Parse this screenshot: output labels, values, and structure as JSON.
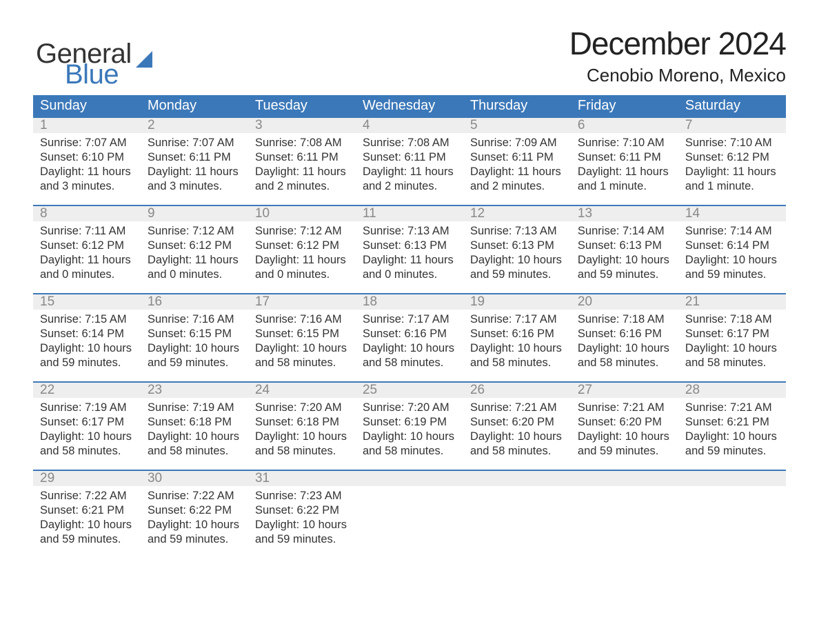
{
  "brand": {
    "line1": "General",
    "line2": "Blue"
  },
  "title": {
    "month": "December 2024",
    "location": "Cenobio Moreno, Mexico"
  },
  "colors": {
    "header_bg": "#3b78b9",
    "header_text": "#ffffff",
    "daynum_bg": "#eeeeee",
    "daynum_text": "#888888",
    "body_text": "#333333",
    "rule": "#3b78b9",
    "brand_accent": "#3b78b9"
  },
  "day_names": [
    "Sunday",
    "Monday",
    "Tuesday",
    "Wednesday",
    "Thursday",
    "Friday",
    "Saturday"
  ],
  "weeks": [
    [
      {
        "n": "1",
        "sunrise": "Sunrise: 7:07 AM",
        "sunset": "Sunset: 6:10 PM",
        "day1": "Daylight: 11 hours",
        "day2": "and 3 minutes."
      },
      {
        "n": "2",
        "sunrise": "Sunrise: 7:07 AM",
        "sunset": "Sunset: 6:11 PM",
        "day1": "Daylight: 11 hours",
        "day2": "and 3 minutes."
      },
      {
        "n": "3",
        "sunrise": "Sunrise: 7:08 AM",
        "sunset": "Sunset: 6:11 PM",
        "day1": "Daylight: 11 hours",
        "day2": "and 2 minutes."
      },
      {
        "n": "4",
        "sunrise": "Sunrise: 7:08 AM",
        "sunset": "Sunset: 6:11 PM",
        "day1": "Daylight: 11 hours",
        "day2": "and 2 minutes."
      },
      {
        "n": "5",
        "sunrise": "Sunrise: 7:09 AM",
        "sunset": "Sunset: 6:11 PM",
        "day1": "Daylight: 11 hours",
        "day2": "and 2 minutes."
      },
      {
        "n": "6",
        "sunrise": "Sunrise: 7:10 AM",
        "sunset": "Sunset: 6:11 PM",
        "day1": "Daylight: 11 hours",
        "day2": "and 1 minute."
      },
      {
        "n": "7",
        "sunrise": "Sunrise: 7:10 AM",
        "sunset": "Sunset: 6:12 PM",
        "day1": "Daylight: 11 hours",
        "day2": "and 1 minute."
      }
    ],
    [
      {
        "n": "8",
        "sunrise": "Sunrise: 7:11 AM",
        "sunset": "Sunset: 6:12 PM",
        "day1": "Daylight: 11 hours",
        "day2": "and 0 minutes."
      },
      {
        "n": "9",
        "sunrise": "Sunrise: 7:12 AM",
        "sunset": "Sunset: 6:12 PM",
        "day1": "Daylight: 11 hours",
        "day2": "and 0 minutes."
      },
      {
        "n": "10",
        "sunrise": "Sunrise: 7:12 AM",
        "sunset": "Sunset: 6:12 PM",
        "day1": "Daylight: 11 hours",
        "day2": "and 0 minutes."
      },
      {
        "n": "11",
        "sunrise": "Sunrise: 7:13 AM",
        "sunset": "Sunset: 6:13 PM",
        "day1": "Daylight: 11 hours",
        "day2": "and 0 minutes."
      },
      {
        "n": "12",
        "sunrise": "Sunrise: 7:13 AM",
        "sunset": "Sunset: 6:13 PM",
        "day1": "Daylight: 10 hours",
        "day2": "and 59 minutes."
      },
      {
        "n": "13",
        "sunrise": "Sunrise: 7:14 AM",
        "sunset": "Sunset: 6:13 PM",
        "day1": "Daylight: 10 hours",
        "day2": "and 59 minutes."
      },
      {
        "n": "14",
        "sunrise": "Sunrise: 7:14 AM",
        "sunset": "Sunset: 6:14 PM",
        "day1": "Daylight: 10 hours",
        "day2": "and 59 minutes."
      }
    ],
    [
      {
        "n": "15",
        "sunrise": "Sunrise: 7:15 AM",
        "sunset": "Sunset: 6:14 PM",
        "day1": "Daylight: 10 hours",
        "day2": "and 59 minutes."
      },
      {
        "n": "16",
        "sunrise": "Sunrise: 7:16 AM",
        "sunset": "Sunset: 6:15 PM",
        "day1": "Daylight: 10 hours",
        "day2": "and 59 minutes."
      },
      {
        "n": "17",
        "sunrise": "Sunrise: 7:16 AM",
        "sunset": "Sunset: 6:15 PM",
        "day1": "Daylight: 10 hours",
        "day2": "and 58 minutes."
      },
      {
        "n": "18",
        "sunrise": "Sunrise: 7:17 AM",
        "sunset": "Sunset: 6:16 PM",
        "day1": "Daylight: 10 hours",
        "day2": "and 58 minutes."
      },
      {
        "n": "19",
        "sunrise": "Sunrise: 7:17 AM",
        "sunset": "Sunset: 6:16 PM",
        "day1": "Daylight: 10 hours",
        "day2": "and 58 minutes."
      },
      {
        "n": "20",
        "sunrise": "Sunrise: 7:18 AM",
        "sunset": "Sunset: 6:16 PM",
        "day1": "Daylight: 10 hours",
        "day2": "and 58 minutes."
      },
      {
        "n": "21",
        "sunrise": "Sunrise: 7:18 AM",
        "sunset": "Sunset: 6:17 PM",
        "day1": "Daylight: 10 hours",
        "day2": "and 58 minutes."
      }
    ],
    [
      {
        "n": "22",
        "sunrise": "Sunrise: 7:19 AM",
        "sunset": "Sunset: 6:17 PM",
        "day1": "Daylight: 10 hours",
        "day2": "and 58 minutes."
      },
      {
        "n": "23",
        "sunrise": "Sunrise: 7:19 AM",
        "sunset": "Sunset: 6:18 PM",
        "day1": "Daylight: 10 hours",
        "day2": "and 58 minutes."
      },
      {
        "n": "24",
        "sunrise": "Sunrise: 7:20 AM",
        "sunset": "Sunset: 6:18 PM",
        "day1": "Daylight: 10 hours",
        "day2": "and 58 minutes."
      },
      {
        "n": "25",
        "sunrise": "Sunrise: 7:20 AM",
        "sunset": "Sunset: 6:19 PM",
        "day1": "Daylight: 10 hours",
        "day2": "and 58 minutes."
      },
      {
        "n": "26",
        "sunrise": "Sunrise: 7:21 AM",
        "sunset": "Sunset: 6:20 PM",
        "day1": "Daylight: 10 hours",
        "day2": "and 58 minutes."
      },
      {
        "n": "27",
        "sunrise": "Sunrise: 7:21 AM",
        "sunset": "Sunset: 6:20 PM",
        "day1": "Daylight: 10 hours",
        "day2": "and 59 minutes."
      },
      {
        "n": "28",
        "sunrise": "Sunrise: 7:21 AM",
        "sunset": "Sunset: 6:21 PM",
        "day1": "Daylight: 10 hours",
        "day2": "and 59 minutes."
      }
    ],
    [
      {
        "n": "29",
        "sunrise": "Sunrise: 7:22 AM",
        "sunset": "Sunset: 6:21 PM",
        "day1": "Daylight: 10 hours",
        "day2": "and 59 minutes."
      },
      {
        "n": "30",
        "sunrise": "Sunrise: 7:22 AM",
        "sunset": "Sunset: 6:22 PM",
        "day1": "Daylight: 10 hours",
        "day2": "and 59 minutes."
      },
      {
        "n": "31",
        "sunrise": "Sunrise: 7:23 AM",
        "sunset": "Sunset: 6:22 PM",
        "day1": "Daylight: 10 hours",
        "day2": "and 59 minutes."
      },
      null,
      null,
      null,
      null
    ]
  ]
}
